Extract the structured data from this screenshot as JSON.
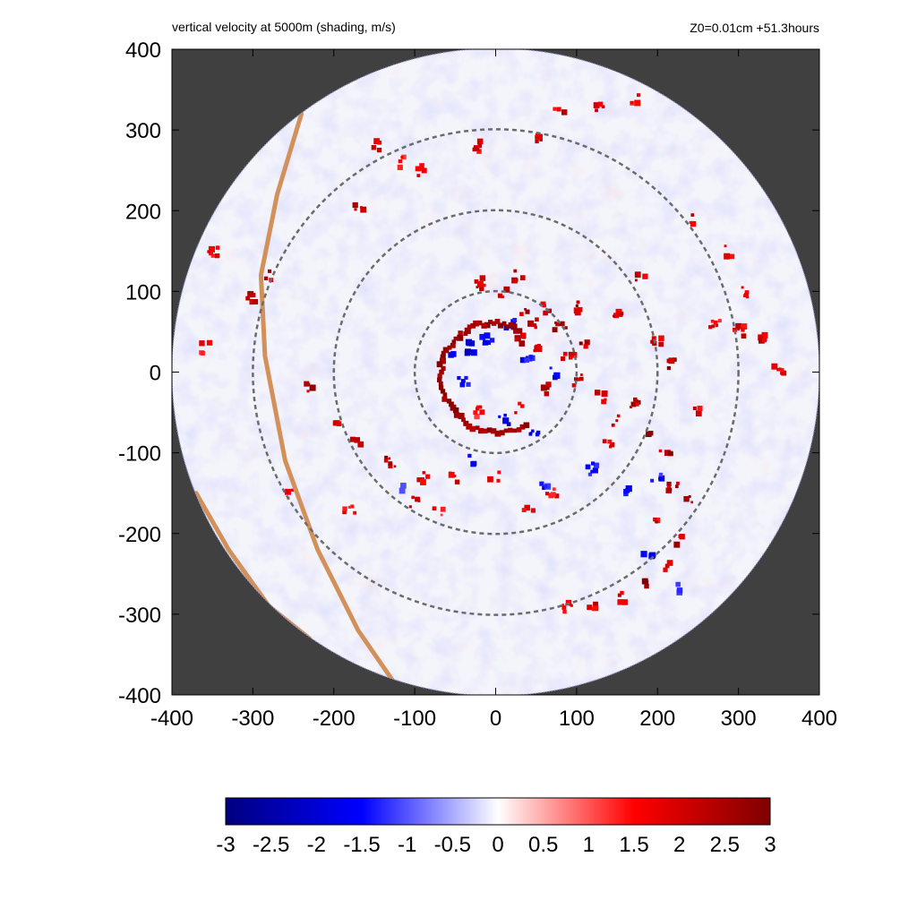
{
  "chart_data": {
    "type": "heatmap",
    "title": "vertical velocity at 5000m (shading, m/s)",
    "subtitle": "Z0=0.01cm  +51.3hours",
    "xlabel": "",
    "ylabel": "",
    "xlim": [
      -400,
      400
    ],
    "ylim": [
      -400,
      400
    ],
    "x_ticks": [
      "-400",
      "-300",
      "-200",
      "-100",
      "0",
      "100",
      "200",
      "300",
      "400"
    ],
    "y_ticks": [
      "400",
      "300",
      "200",
      "100",
      "0",
      "-100",
      "-200",
      "-300",
      "-400"
    ],
    "domain_radius": 400,
    "range_rings": [
      100,
      200,
      300
    ],
    "colorbar": {
      "min": -3,
      "max": 3,
      "ticks": [
        "-3",
        "-2.5",
        "-2",
        "-1.5",
        "-1",
        "-0.5",
        "0",
        "0.5",
        "1",
        "1.5",
        "2",
        "2.5",
        "3"
      ],
      "colors": [
        "#00007f",
        "#0000ff",
        "#ffffff",
        "#ff0000",
        "#7f0000"
      ]
    },
    "background_color": "#404040",
    "coastline_color": "#d2905a",
    "updraft_cells": [
      [
        30,
        40,
        3
      ],
      [
        45,
        60,
        3
      ],
      [
        55,
        30,
        2.5
      ],
      [
        35,
        75,
        3
      ],
      [
        60,
        80,
        2.5
      ],
      [
        80,
        55,
        3
      ],
      [
        90,
        20,
        2.5
      ],
      [
        65,
        -20,
        3
      ],
      [
        30,
        -45,
        2.5
      ],
      [
        -20,
        -50,
        2
      ],
      [
        100,
        -10,
        2.5
      ],
      [
        110,
        30,
        3
      ],
      [
        130,
        -30,
        2.5
      ],
      [
        150,
        -60,
        3
      ],
      [
        140,
        -90,
        2.5
      ],
      [
        170,
        -40,
        3
      ],
      [
        185,
        -80,
        3
      ],
      [
        210,
        -100,
        3
      ],
      [
        220,
        -140,
        3
      ],
      [
        240,
        -160,
        3
      ],
      [
        200,
        -180,
        2.5
      ],
      [
        230,
        -210,
        3
      ],
      [
        210,
        -240,
        2.5
      ],
      [
        180,
        -260,
        3
      ],
      [
        160,
        -280,
        2.5
      ],
      [
        120,
        -290,
        2.5
      ],
      [
        90,
        -290,
        2
      ],
      [
        220,
        10,
        3
      ],
      [
        200,
        40,
        2.5
      ],
      [
        250,
        -50,
        2.5
      ],
      [
        270,
        60,
        2
      ],
      [
        300,
        50,
        2.5
      ],
      [
        330,
        40,
        2.5
      ],
      [
        350,
        5,
        2
      ],
      [
        -230,
        -20,
        3
      ],
      [
        -200,
        -60,
        2.5
      ],
      [
        -170,
        -90,
        2.5
      ],
      [
        -130,
        -110,
        3
      ],
      [
        -90,
        -130,
        2.5
      ],
      [
        -50,
        -130,
        2.5
      ],
      [
        -100,
        -160,
        2.5
      ],
      [
        -70,
        -170,
        2
      ],
      [
        0,
        -130,
        2.5
      ],
      [
        40,
        -170,
        2.5
      ],
      [
        70,
        -150,
        2
      ],
      [
        -20,
        110,
        2.5
      ],
      [
        10,
        100,
        3
      ],
      [
        30,
        120,
        2.5
      ],
      [
        -170,
        200,
        2.5
      ],
      [
        -150,
        280,
        2.5
      ],
      [
        -120,
        260,
        2
      ],
      [
        -90,
        250,
        2
      ],
      [
        -20,
        280,
        2.5
      ],
      [
        50,
        290,
        2.5
      ],
      [
        80,
        320,
        2.5
      ],
      [
        130,
        330,
        2.5
      ],
      [
        170,
        340,
        2
      ],
      [
        -280,
        120,
        3
      ],
      [
        -300,
        90,
        2.5
      ],
      [
        -350,
        150,
        2
      ],
      [
        -360,
        30,
        2
      ],
      [
        -250,
        -150,
        2
      ],
      [
        -180,
        -170,
        2
      ],
      [
        100,
        80,
        3
      ],
      [
        150,
        70,
        2.5
      ],
      [
        180,
        120,
        2.5
      ],
      [
        240,
        190,
        2.5
      ],
      [
        290,
        150,
        2
      ],
      [
        310,
        100,
        2
      ]
    ],
    "downdraft_cells": [
      [
        -30,
        30,
        -2.5
      ],
      [
        -40,
        -10,
        -2
      ],
      [
        10,
        -60,
        -2.5
      ],
      [
        50,
        -80,
        -2
      ],
      [
        -55,
        20,
        -2
      ],
      [
        20,
        60,
        -2
      ],
      [
        70,
        0,
        -2
      ],
      [
        120,
        -120,
        -2
      ],
      [
        160,
        -150,
        -2
      ],
      [
        200,
        -130,
        -2
      ],
      [
        60,
        -140,
        -2
      ],
      [
        -30,
        -110,
        -2
      ],
      [
        -110,
        -140,
        -1.5
      ],
      [
        40,
        20,
        -2
      ],
      [
        -10,
        40,
        -2.5
      ],
      [
        190,
        -230,
        -2
      ],
      [
        230,
        -270,
        -1.5
      ]
    ]
  }
}
